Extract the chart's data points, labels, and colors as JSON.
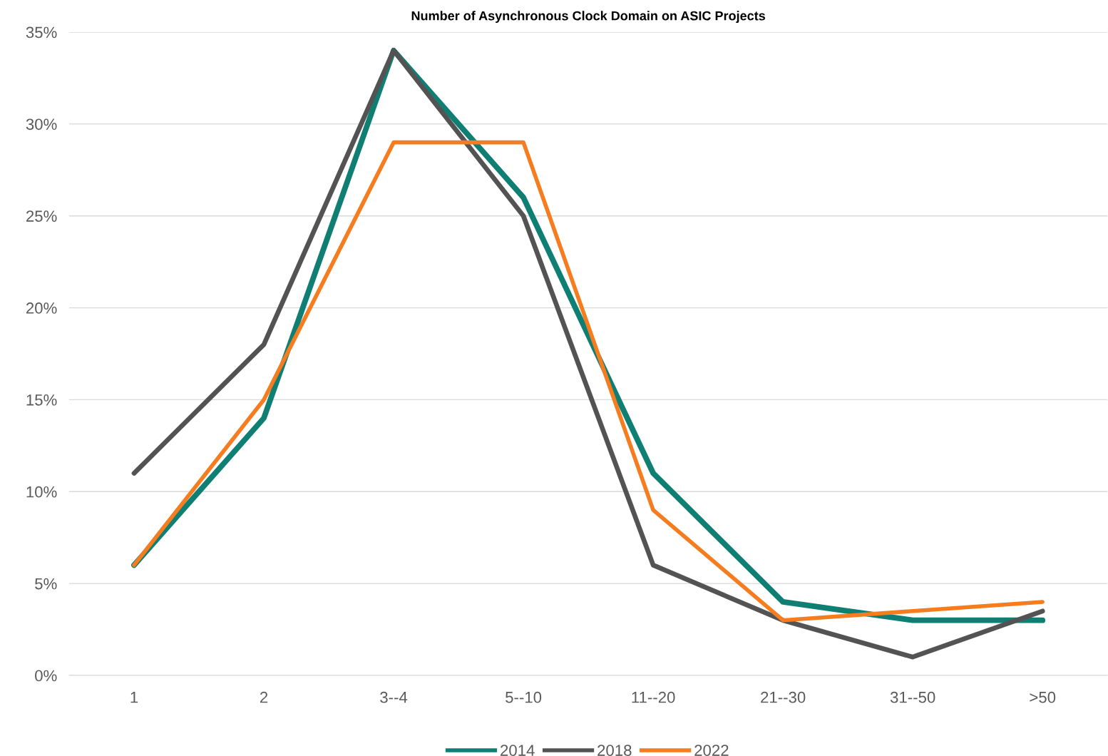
{
  "chart_data": {
    "type": "line",
    "title": "Number of Asynchronous Clock Domain on ASIC Projects",
    "categories": [
      "1",
      "2",
      "3--4",
      "5--10",
      "11--20",
      "21--30",
      "31--50",
      ">50"
    ],
    "series": [
      {
        "name": "2014",
        "color": "#0f7f74",
        "values": [
          6,
          14,
          34,
          26,
          11,
          4,
          3,
          3
        ]
      },
      {
        "name": "2018",
        "color": "#545354",
        "values": [
          11,
          18,
          34,
          25,
          6,
          3,
          1,
          3.5
        ]
      },
      {
        "name": "2022",
        "color": "#f57c1f",
        "values": [
          6,
          15,
          29,
          29,
          9,
          3,
          3.5,
          4
        ]
      }
    ],
    "ylim": [
      0,
      35
    ],
    "yticks": [
      {
        "value": 0,
        "label": "0%"
      },
      {
        "value": 5,
        "label": "5%"
      },
      {
        "value": 10,
        "label": "10%"
      },
      {
        "value": 15,
        "label": "15%"
      },
      {
        "value": 20,
        "label": "20%"
      },
      {
        "value": 25,
        "label": "25%"
      },
      {
        "value": 30,
        "label": "30%"
      },
      {
        "value": 35,
        "label": "35%"
      }
    ],
    "grid": "y",
    "legend": "bottom",
    "marker": "none",
    "line_style": "solid"
  }
}
